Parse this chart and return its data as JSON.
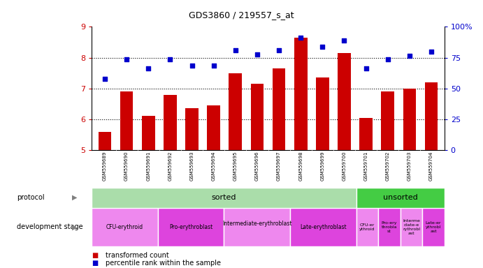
{
  "title": "GDS3860 / 219557_s_at",
  "samples": [
    "GSM559689",
    "GSM559690",
    "GSM559691",
    "GSM559692",
    "GSM559693",
    "GSM559694",
    "GSM559695",
    "GSM559696",
    "GSM559697",
    "GSM559698",
    "GSM559699",
    "GSM559700",
    "GSM559701",
    "GSM559702",
    "GSM559703",
    "GSM559704"
  ],
  "bar_values": [
    5.6,
    6.9,
    6.1,
    6.8,
    6.35,
    6.45,
    7.5,
    7.15,
    7.65,
    8.65,
    7.35,
    8.15,
    6.05,
    6.9,
    7.0,
    7.2
  ],
  "dot_values_left_scale": [
    7.3,
    7.95,
    7.65,
    7.95,
    7.75,
    7.75,
    8.25,
    8.1,
    8.25,
    8.65,
    8.35,
    8.55,
    7.65,
    7.95,
    8.05,
    8.2
  ],
  "bar_color": "#cc0000",
  "dot_color": "#0000cc",
  "ylim_left": [
    5,
    9
  ],
  "ylim_right": [
    0,
    100
  ],
  "yticks_left": [
    5,
    6,
    7,
    8,
    9
  ],
  "yticks_right": [
    0,
    25,
    50,
    75,
    100
  ],
  "ytick_labels_right": [
    "0",
    "25",
    "50",
    "75",
    "100%"
  ],
  "sorted_count": 12,
  "unsorted_count": 4,
  "sorted_label": "sorted",
  "unsorted_label": "unsorted",
  "sorted_color": "#aaddaa",
  "unsorted_color": "#44cc44",
  "dev_groups_sorted": [
    {
      "label": "CFU-erythroid",
      "cols": 3,
      "color": "#ee88ee"
    },
    {
      "label": "Pro-erythroblast",
      "cols": 3,
      "color": "#dd44dd"
    },
    {
      "label": "Intermediate-erythroblast\n",
      "cols": 3,
      "color": "#ee88ee"
    },
    {
      "label": "Late-erythroblast",
      "cols": 3,
      "color": "#dd44dd"
    }
  ],
  "dev_groups_unsorted": [
    {
      "label": "CFU-er\nythroid",
      "cols": 1,
      "color": "#ee88ee"
    },
    {
      "label": "Pro-ery\nthrobla\nst",
      "cols": 1,
      "color": "#dd44dd"
    },
    {
      "label": "Interme\ndiate-e\nrythrobl\nast",
      "cols": 1,
      "color": "#ee88ee"
    },
    {
      "label": "Late-er\nythrobl\nast",
      "cols": 1,
      "color": "#dd44dd"
    }
  ],
  "xlabel_area_color": "#cccccc",
  "background_color": "#ffffff",
  "tick_color_left": "#cc0000",
  "tick_color_right": "#0000cc",
  "grid_yticks": [
    6,
    7,
    8
  ],
  "legend_items": [
    {
      "color": "#cc0000",
      "label": "transformed count"
    },
    {
      "color": "#0000cc",
      "label": "percentile rank within the sample"
    }
  ]
}
